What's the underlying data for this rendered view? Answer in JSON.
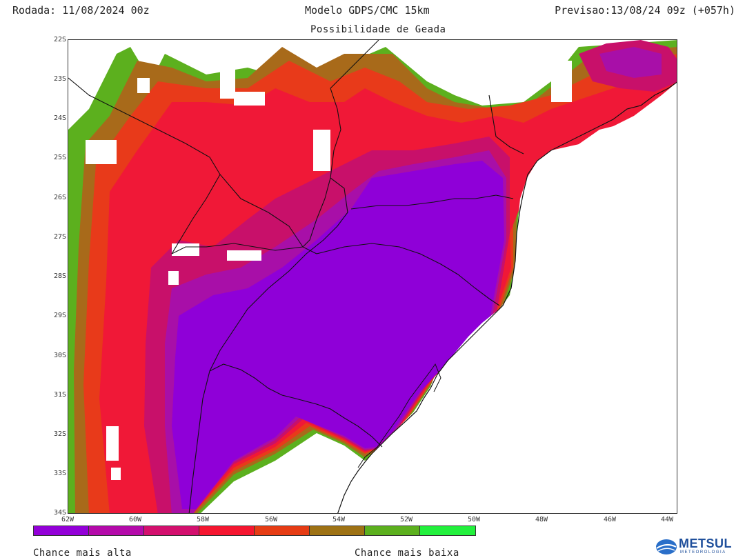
{
  "header": {
    "run": "Rodada: 11/08/2024 00z",
    "model": "Modelo GDPS/CMC 15km",
    "forecast": "Previsao:13/08/24 09z (+057h)",
    "subtitle": "Possibilidade de Geada"
  },
  "map": {
    "lat_labels": [
      "22S",
      "23S",
      "24S",
      "25S",
      "26S",
      "27S",
      "28S",
      "29S",
      "30S",
      "31S",
      "32S",
      "33S",
      "34S"
    ],
    "lon_labels": [
      "62W",
      "60W",
      "58W",
      "56W",
      "54W",
      "52W",
      "50W",
      "48W",
      "46W",
      "44W"
    ],
    "lat_range": [
      -34,
      -22
    ],
    "lon_range": [
      -62,
      -44
    ],
    "field_colors": {
      "very_high": "#8f00d8",
      "high": "#a80fa8",
      "mid_high": "#c8106a",
      "mid": "#f01837",
      "mid_low": "#e83a1a",
      "low": "#a86a1a",
      "very_low": "#58b41c",
      "none": "#ffffff"
    }
  },
  "colorbar": {
    "colors": [
      "#9300d8",
      "#b40aaa",
      "#d3106e",
      "#f51630",
      "#e63c14",
      "#9e7214",
      "#5cb01e",
      "#22f03c"
    ],
    "label_high": "Chance mais alta",
    "label_low": "Chance mais baixa"
  },
  "logo": {
    "text": "METSUL",
    "subtext": "METEOROLOGIA"
  }
}
